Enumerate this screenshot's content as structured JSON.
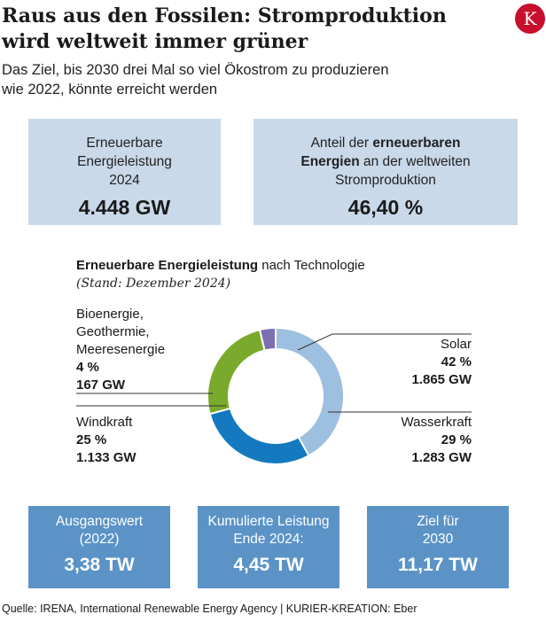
{
  "header": {
    "title": "Raus aus den Fossilen: Stromproduktion wird weltweit immer grüner",
    "subtitle": "Das Ziel, bis 2030 drei Mal so viel Ökostrom zu produzieren wie 2022, könnte erreicht werden",
    "logo_text": "K"
  },
  "kpi_top": [
    {
      "label": "Erneuerbare Energieleistung 2024",
      "value": "4.448 GW"
    },
    {
      "label_pre": "Anteil der ",
      "label_bold": "erneuerbaren Energien",
      "label_post": " an der weltweiten Stromproduktion",
      "value": "46,40 %"
    }
  ],
  "chart_data": {
    "type": "pie",
    "title_bold": "Erneuerbare Energieleistung",
    "title_rest": " nach Technologie",
    "note": "(Stand: Dezember 2024)",
    "slices": [
      {
        "name": "Solar",
        "percent_label": "42 %",
        "value_label": "1.865 GW",
        "value": 1865,
        "color": "#9dbfe0"
      },
      {
        "name": "Wasserkraft",
        "percent_label": "29 %",
        "value_label": "1.283 GW",
        "value": 1283,
        "color": "#1479bf"
      },
      {
        "name": "Windkraft",
        "percent_label": "25 %",
        "value_label": "1.133 GW",
        "value": 1133,
        "color": "#7aaa2b"
      },
      {
        "name_lines": [
          "Bioenergie,",
          "Geothermie,",
          "Meeresenergie"
        ],
        "percent_label": "4 %",
        "value_label": "167 GW",
        "value": 167,
        "color": "#7b6fb0"
      }
    ],
    "donut": true,
    "start": "top, clockwise"
  },
  "kpi_bottom": [
    {
      "label_lines": [
        "Ausgangswert",
        "(2022)"
      ],
      "value": "3,38 TW"
    },
    {
      "label_lines": [
        "Kumulierte Leistung",
        "Ende 2024:"
      ],
      "value": "4,45 TW"
    },
    {
      "label_lines": [
        "Ziel für",
        "2030"
      ],
      "value": "11,17 TW"
    }
  ],
  "footer": {
    "source": "Quelle: IRENA, International Renewable Energy Agency | KURIER-KREATION: Eber"
  },
  "colors": {
    "top_box": "#c9d9ea",
    "bottom_box": "#5b93c7",
    "leader_line": "#333333",
    "logo": "#c8102e"
  }
}
